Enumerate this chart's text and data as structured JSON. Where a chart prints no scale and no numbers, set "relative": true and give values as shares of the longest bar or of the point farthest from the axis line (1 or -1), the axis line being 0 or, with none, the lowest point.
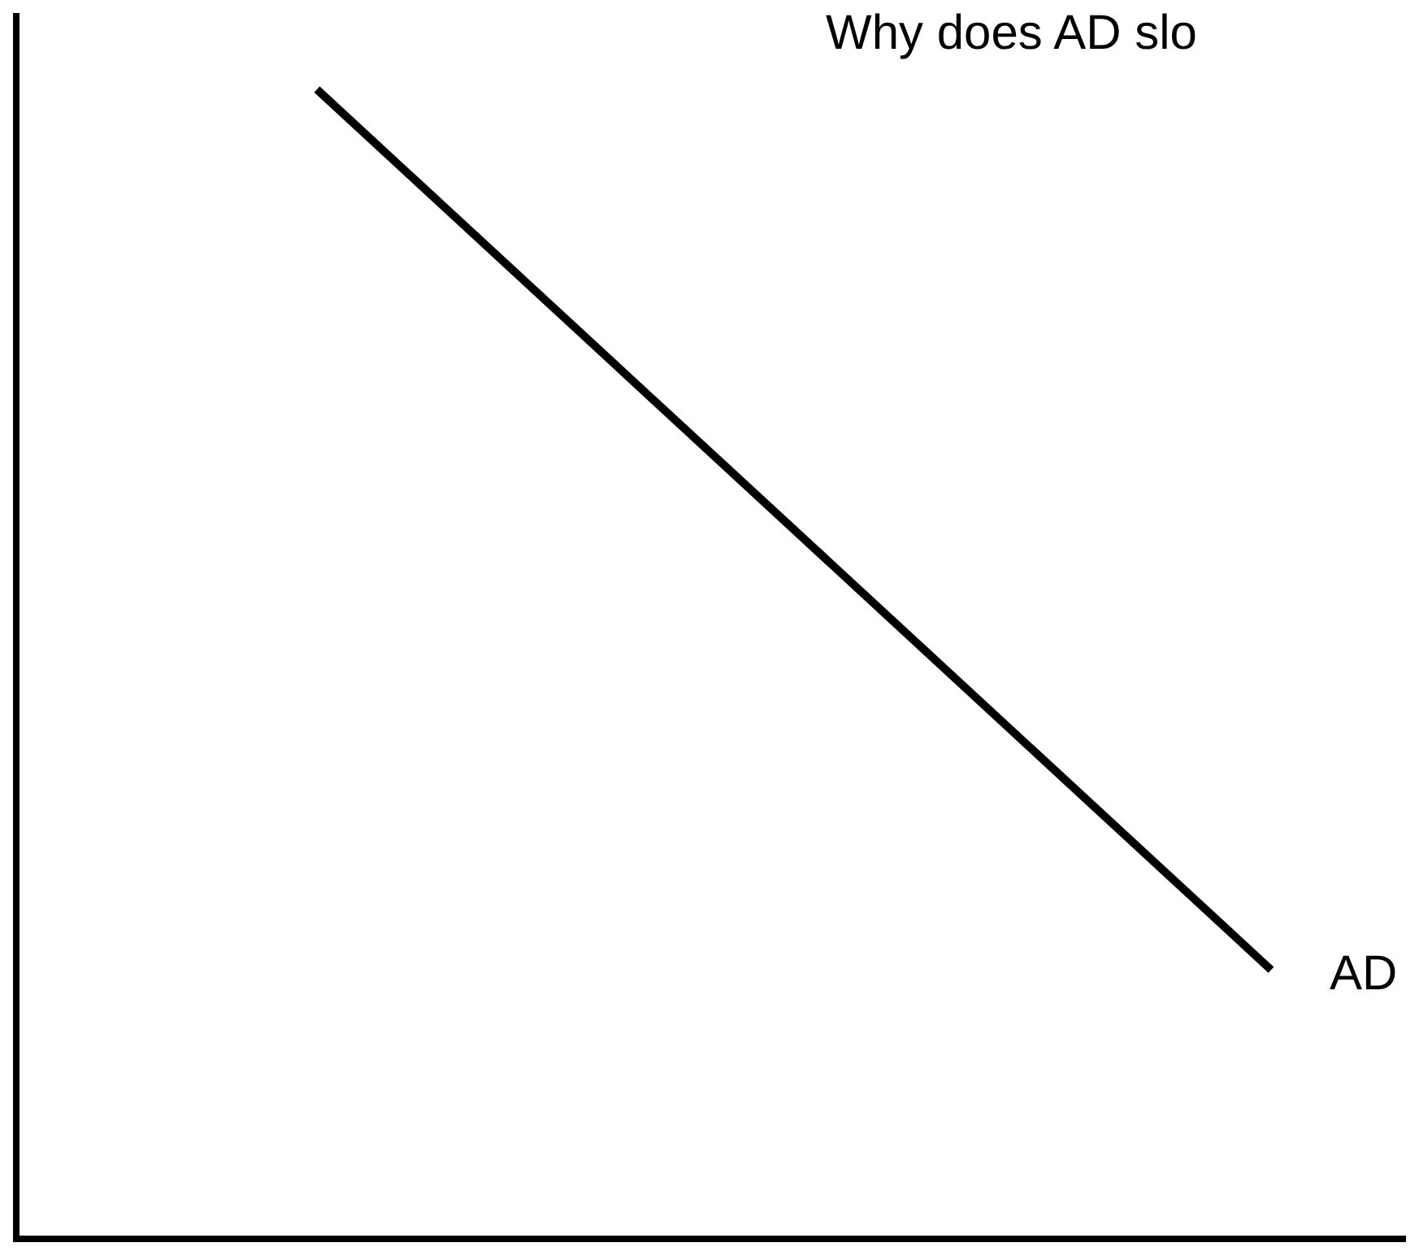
{
  "chart_data": {
    "type": "line",
    "title": "Why does AD slo",
    "relative": true,
    "categories": [
      null,
      null
    ],
    "series": [
      {
        "name": "AD",
        "color": "#000000",
        "values": [
          1,
          0.234
        ]
      }
    ]
  }
}
